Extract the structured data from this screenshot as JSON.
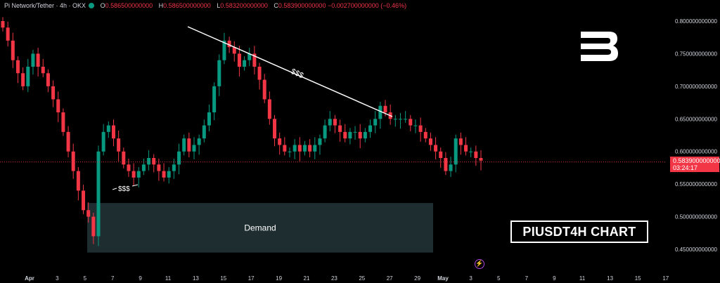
{
  "header": {
    "symbol": "Pi Network/Tether · 4h · OKX",
    "o_label": "O",
    "o_value": "0.586500000000",
    "h_label": "H",
    "h_value": "0.586500000000",
    "l_label": "L",
    "l_value": "0.583200000000",
    "c_label": "C",
    "c_value": "0.583900000000",
    "change": "−0.002700000000 (−0.46%)"
  },
  "logo_icon": "brand-b-logo",
  "title_box": "PIUSDT4H CHART",
  "current_price": {
    "value": "0.583900000000",
    "countdown": "03:24:17"
  },
  "colors": {
    "up": "#089981",
    "down": "#f23645",
    "bg": "#000000",
    "demand_zone": "#1e2d30",
    "price_line": "#f23645"
  },
  "chart_data": {
    "type": "candlestick",
    "title": "",
    "xlabel": "",
    "ylabel": "",
    "ylim": [
      0.4175,
      0.8233
    ],
    "yticks": [
      "0.800000000000",
      "0.750000000000",
      "0.700000000000",
      "0.650000000000",
      "0.600000000000",
      "0.550000000000",
      "0.500000000000",
      "0.450000000000"
    ],
    "xticks": [
      "Apr",
      "3",
      "5",
      "7",
      "9",
      "11",
      "13",
      "15",
      "17",
      "19",
      "21",
      "23",
      "25",
      "27",
      "29",
      "May",
      "3",
      "5",
      "7",
      "9",
      "11",
      "13",
      "15",
      "17"
    ],
    "grid": false,
    "close_series": [
      0.79,
      0.77,
      0.74,
      0.72,
      0.7,
      0.73,
      0.75,
      0.73,
      0.72,
      0.7,
      0.68,
      0.66,
      0.63,
      0.6,
      0.57,
      0.54,
      0.51,
      0.5,
      0.47,
      0.6,
      0.63,
      0.64,
      0.62,
      0.6,
      0.58,
      0.57,
      0.56,
      0.57,
      0.58,
      0.59,
      0.58,
      0.57,
      0.56,
      0.57,
      0.58,
      0.6,
      0.62,
      0.6,
      0.61,
      0.62,
      0.64,
      0.66,
      0.7,
      0.74,
      0.77,
      0.76,
      0.75,
      0.73,
      0.74,
      0.75,
      0.73,
      0.71,
      0.68,
      0.65,
      0.62,
      0.61,
      0.6,
      0.6,
      0.61,
      0.6,
      0.61,
      0.6,
      0.61,
      0.62,
      0.64,
      0.65,
      0.64,
      0.63,
      0.62,
      0.63,
      0.63,
      0.62,
      0.63,
      0.64,
      0.65,
      0.67,
      0.66,
      0.65,
      0.65,
      0.65,
      0.65,
      0.64,
      0.64,
      0.63,
      0.62,
      0.61,
      0.6,
      0.59,
      0.57,
      0.58,
      0.62,
      0.61,
      0.6,
      0.6,
      0.59,
      0.586
    ],
    "annotations": [
      {
        "type": "trendline",
        "label": "$$$",
        "from": [
          "12.5 Apr",
          0.791
        ],
        "to": [
          "27 Apr",
          0.652
        ]
      },
      {
        "type": "label",
        "text": "$$$",
        "at": [
          "8 Apr",
          0.553
        ]
      },
      {
        "type": "zone",
        "label": "Demand",
        "y_range": [
          0.445,
          0.521
        ],
        "x_range": [
          "5 Apr",
          "30 Apr"
        ]
      },
      {
        "type": "hline",
        "value": 0.5839
      }
    ]
  }
}
